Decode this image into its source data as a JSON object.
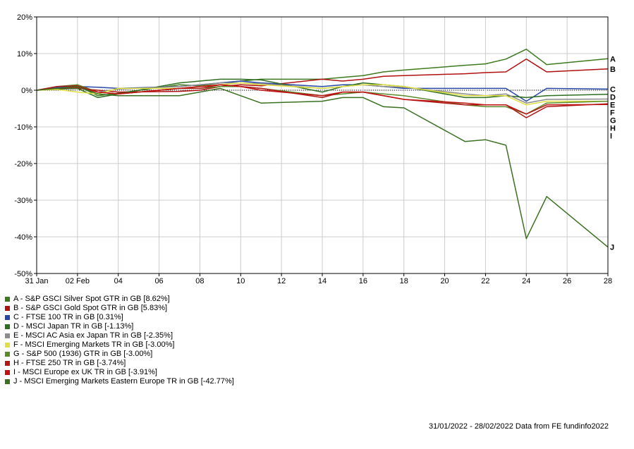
{
  "chart_data": {
    "type": "line",
    "title": "",
    "xlabel": "",
    "ylabel": "",
    "ylim": [
      -50,
      20
    ],
    "y_ticks": [
      20,
      10,
      0,
      -10,
      -20,
      -30,
      -40,
      -50
    ],
    "y_tick_labels": [
      "20%",
      "10%",
      "0%",
      "-10%",
      "-20%",
      "-30%",
      "-40%",
      "-50%"
    ],
    "x_tick_labels": [
      "31 Jan",
      "02 Feb",
      "04",
      "06",
      "08",
      "10",
      "12",
      "14",
      "16",
      "18",
      "20",
      "22",
      "24",
      "26",
      "28"
    ],
    "x_tick_days": [
      0,
      2,
      4,
      6,
      8,
      10,
      12,
      14,
      16,
      18,
      20,
      22,
      24,
      26,
      28
    ],
    "x": [
      0,
      1,
      2,
      3,
      4,
      7,
      8,
      9,
      10,
      11,
      14,
      15,
      16,
      17,
      18,
      21,
      22,
      23,
      24,
      25,
      28
    ],
    "grid": true,
    "series": [
      {
        "letter": "A",
        "name": "A - S&P GSCI Silver Spot GTR in GB [8.62%]",
        "color": "#3d7a1f",
        "values": [
          0,
          0.5,
          1.2,
          -1.5,
          -0.8,
          1.5,
          1.2,
          2.0,
          2.5,
          3.0,
          3.0,
          3.5,
          4.0,
          5.0,
          5.5,
          6.8,
          7.2,
          8.5,
          11.2,
          7.0,
          8.6
        ]
      },
      {
        "letter": "B",
        "name": "B - S&P GSCI Gold Spot GTR in GB [5.83%]",
        "color": "#b01010",
        "values": [
          0,
          0.3,
          0.5,
          0.0,
          -0.5,
          -0.3,
          0.0,
          1.0,
          1.5,
          1.2,
          3.0,
          2.5,
          3.0,
          3.8,
          4.0,
          4.5,
          4.8,
          5.0,
          8.5,
          5.0,
          5.8
        ]
      },
      {
        "letter": "C",
        "name": "C - FTSE 100 TR in GB [0.31%]",
        "color": "#2848a8",
        "values": [
          0,
          0.8,
          1.0,
          0.8,
          0.5,
          1.0,
          1.5,
          2.0,
          2.5,
          2.0,
          1.0,
          1.5,
          1.5,
          1.0,
          0.5,
          0.5,
          0.5,
          0.5,
          -3.0,
          0.5,
          0.3
        ]
      },
      {
        "letter": "D",
        "name": "D - MSCI Japan TR in GB [-1.13%]",
        "color": "#2e6e20",
        "values": [
          0,
          0.3,
          0.5,
          -2.0,
          -1.0,
          2.0,
          2.5,
          3.0,
          3.0,
          2.8,
          -0.5,
          1.0,
          2.0,
          1.5,
          1.0,
          -2.0,
          -2.0,
          -1.5,
          -2.0,
          -1.5,
          -1.1
        ]
      },
      {
        "letter": "E",
        "name": "E - MSCI AC Asia ex Japan TR in GB [-2.35%]",
        "color": "#8c8c8c",
        "values": [
          0,
          0.5,
          0.8,
          -0.5,
          0.3,
          1.0,
          1.5,
          2.0,
          2.0,
          1.8,
          0.5,
          1.0,
          1.5,
          1.0,
          0.8,
          -1.0,
          -1.5,
          -1.0,
          -3.5,
          -2.5,
          -2.4
        ]
      },
      {
        "letter": "F",
        "name": "F - MSCI Emerging Markets TR in GB [-3.00%]",
        "color": "#e0e040",
        "values": [
          0,
          0.2,
          -0.5,
          -1.0,
          0.5,
          0.5,
          1.0,
          1.5,
          2.0,
          1.5,
          0.5,
          1.0,
          1.5,
          1.5,
          1.0,
          -1.5,
          -1.5,
          -1.5,
          -4.0,
          -3.0,
          -3.0
        ]
      },
      {
        "letter": "G",
        "name": "G - S&P 500 (1936) GTR in GB [-3.00%]",
        "color": "#5a8a2a",
        "values": [
          0,
          1.0,
          1.5,
          -0.5,
          -1.0,
          0.5,
          0.5,
          1.0,
          1.0,
          0.5,
          -1.5,
          -1.0,
          -0.5,
          -1.0,
          -1.5,
          -4.0,
          -4.5,
          -4.5,
          -6.5,
          -3.5,
          -3.0
        ]
      },
      {
        "letter": "H",
        "name": "H - FTSE 250 TR in GB [-3.74%]",
        "color": "#b01818",
        "values": [
          0,
          1.0,
          1.2,
          -0.5,
          -1.0,
          0.5,
          0.5,
          1.5,
          1.0,
          0.5,
          -2.0,
          -0.5,
          -0.5,
          -1.5,
          -2.5,
          -4.0,
          -4.0,
          -4.0,
          -7.5,
          -4.5,
          -3.7
        ]
      },
      {
        "letter": "I",
        "name": "I - MSCI Europe ex UK TR in GB [-3.91%]",
        "color": "#c01010",
        "values": [
          0,
          0.5,
          0.8,
          -0.5,
          -1.0,
          0.5,
          1.0,
          1.5,
          1.0,
          0.0,
          -1.5,
          -0.5,
          -0.5,
          -1.5,
          -2.5,
          -3.5,
          -4.0,
          -4.0,
          -6.5,
          -4.0,
          -3.9
        ]
      },
      {
        "letter": "J",
        "name": "J - MSCI Emerging Markets Eastern Europe TR in GB [-42.77%]",
        "color": "#3a7020",
        "values": [
          0,
          0.5,
          1.0,
          -1.0,
          -1.5,
          -1.5,
          -0.5,
          0.5,
          -1.5,
          -3.5,
          -3.0,
          -2.0,
          -2.0,
          -4.5,
          -4.8,
          -14.0,
          -13.5,
          -15.0,
          -40.5,
          -29.0,
          -42.8
        ]
      }
    ]
  },
  "footer": "31/01/2022 - 28/02/2022 Data from FE fundinfo2022"
}
